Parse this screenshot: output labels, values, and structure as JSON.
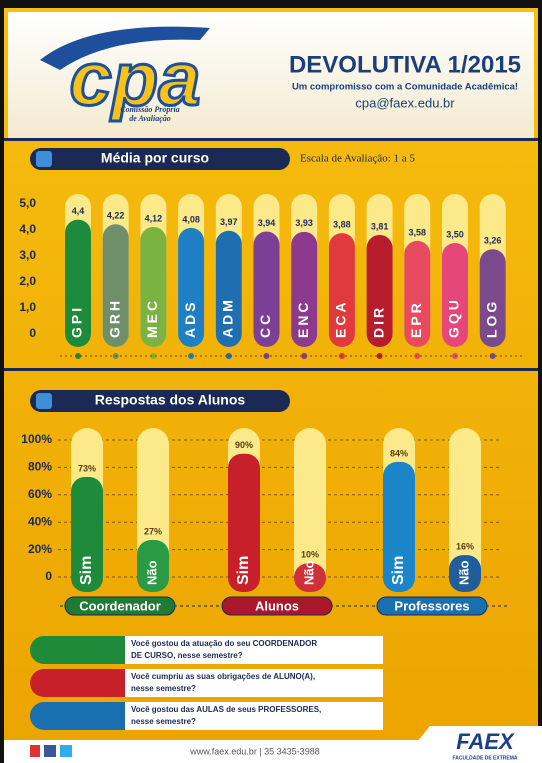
{
  "header": {
    "logo": "cpa",
    "logo_subtitle_1": "Comissão Própria",
    "logo_subtitle_2": "de Avaliação",
    "title": "DEVOLUTIVA 1/2015",
    "subtitle": "Um compromisso com a Comunidade Acadêmica!",
    "email": "cpa@faex.edu.br"
  },
  "chart_data": [
    {
      "type": "bar",
      "title": "Média por curso",
      "subtitle": "Escala de Avaliação: 1 a 5",
      "categories": [
        "GPI",
        "GRH",
        "MEC",
        "ADS",
        "ADM",
        "CC",
        "ENC",
        "ECA",
        "DIR",
        "EPR",
        "GQU",
        "LOG"
      ],
      "values": [
        4.4,
        4.22,
        4.12,
        4.08,
        3.97,
        3.94,
        3.93,
        3.88,
        3.81,
        3.58,
        3.5,
        3.26
      ],
      "value_labels": [
        "4,4",
        "4,22",
        "4,12",
        "4,08",
        "3,97",
        "3,94",
        "3,93",
        "3,88",
        "3,81",
        "3,58",
        "3,50",
        "3,26"
      ],
      "colors": [
        "#1e8b3c",
        "#6f8f6a",
        "#7bb342",
        "#1e7fc4",
        "#1f6fb0",
        "#7b3f96",
        "#8d3a8e",
        "#e0393e",
        "#b81d2d",
        "#e84a5f",
        "#e6477a",
        "#7a4a8c"
      ],
      "ylim": [
        0,
        5
      ],
      "yticks": [
        0,
        {
          "value": 1,
          "label": "1,0"
        },
        {
          "value": 2,
          "label": "2,0"
        },
        {
          "value": 3,
          "label": "3,0"
        },
        {
          "value": 4,
          "label": "4,0"
        },
        {
          "value": 5,
          "label": "5,0"
        }
      ]
    },
    {
      "type": "grouped_bar",
      "title": "Respostas dos Alunos",
      "categories": [
        "Coordenador",
        "Alunos",
        "Professores"
      ],
      "category_colors": [
        "#1e7a35",
        "#a8182a",
        "#1a6fb0"
      ],
      "series": [
        {
          "name": "Sim",
          "colors": [
            "#1e8a3a",
            "#c8202a",
            "#1a85c8"
          ],
          "values": [
            73,
            90,
            84
          ],
          "value_labels": [
            "73%",
            "90%",
            "84%"
          ]
        },
        {
          "name": "Não",
          "colors": [
            "#2a9a45",
            "#d0303a",
            "#1f5e9a"
          ],
          "values": [
            27,
            10,
            16
          ],
          "value_labels": [
            "27%",
            "10%",
            "16%"
          ]
        }
      ],
      "ylim": [
        0,
        100
      ],
      "grid": true,
      "yticks": [
        0,
        {
          "value": 20,
          "label": "20%"
        },
        {
          "value": 40,
          "label": "40%"
        },
        {
          "value": 60,
          "label": "60%"
        },
        {
          "value": 80,
          "label": "80%"
        },
        {
          "value": 100,
          "label": "100%"
        }
      ]
    }
  ],
  "questions": [
    {
      "line1": "Você gostou da atuação do seu COORDENADOR",
      "line2": "DE CURSO, nesse semestre?",
      "color": "#1e8a3a"
    },
    {
      "line1": "Você cumpriu as suas obrigações de ALUNO(A),",
      "line2": "nesse semestre?",
      "color": "#c8202a"
    },
    {
      "line1": "Você gostou das AULAS de seus PROFESSORES,",
      "line2": "nesse semestre?",
      "color": "#1a6fb0"
    }
  ],
  "footer": {
    "contact": "www.faex.edu.br | 35 3435-3988",
    "brand": "FAEX",
    "brand_subtitle": "FACULDADE DE EXTREMA"
  }
}
